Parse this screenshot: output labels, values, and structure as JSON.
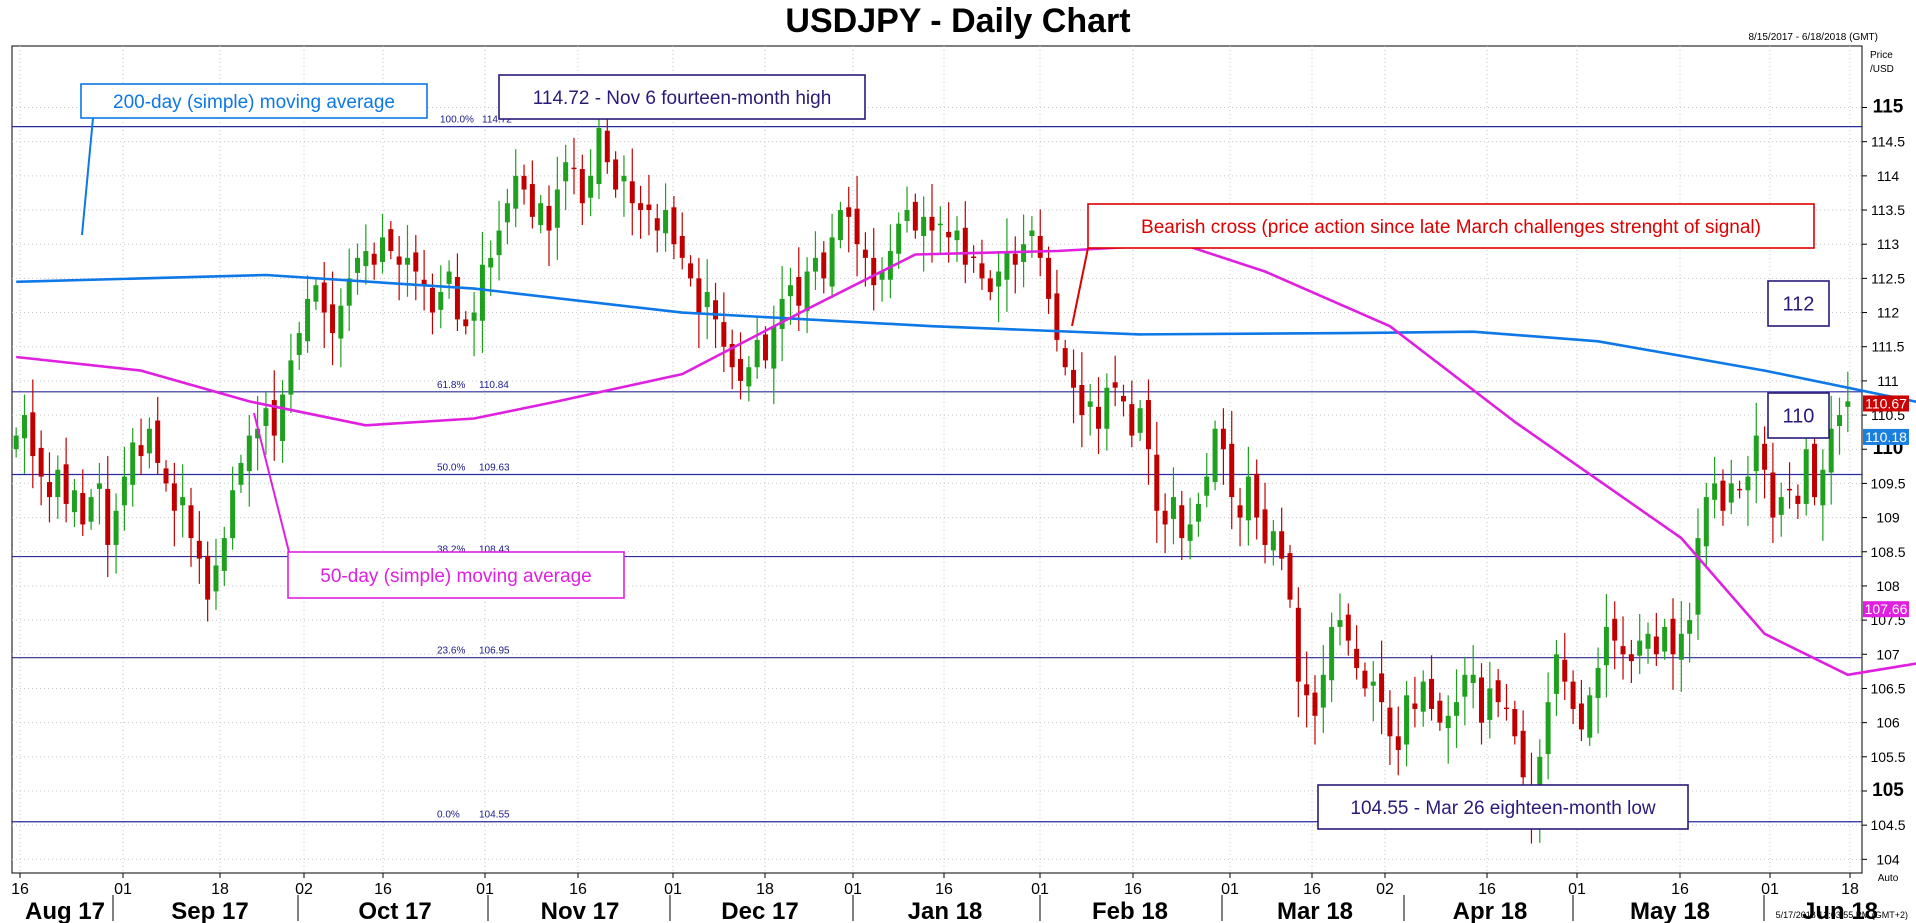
{
  "chart_data": {
    "type": "candlestick",
    "title": "USDJPY - Daily Chart",
    "date_range": "8/15/2017 - 6/18/2018 (GMT)",
    "y_axis_label": "Price /USD",
    "ylim": [
      103.8,
      115.9
    ],
    "y_ticks": [
      "104",
      "104.5",
      "105",
      "105.5",
      "106",
      "106.5",
      "107",
      "107.5",
      "108",
      "108.5",
      "109",
      "109.5",
      "110",
      "110.5",
      "111",
      "111.5",
      "112",
      "112.5",
      "113",
      "113.5",
      "114",
      "114.5",
      "115"
    ],
    "x_day_ticks": [
      "16",
      "01",
      "18",
      "02",
      "16",
      "01",
      "16",
      "01",
      "18",
      "01",
      "16",
      "01",
      "16",
      "01",
      "16",
      "02",
      "16",
      "01",
      "16",
      "01",
      "18"
    ],
    "x_month_labels": [
      "Aug 17",
      "Sep 17",
      "Oct 17",
      "Nov 17",
      "Dec 17",
      "Jan 18",
      "Feb 18",
      "Mar 18",
      "Apr 18",
      "May 18",
      "Jun 18"
    ],
    "fibonacci": [
      {
        "label": "100.0%",
        "value": 114.72,
        "value_text": "114.72"
      },
      {
        "label": "61.8%",
        "value": 110.84,
        "value_text": "110.84"
      },
      {
        "label": "50.0%",
        "value": 109.63,
        "value_text": "109.63"
      },
      {
        "label": "38.2%",
        "value": 108.43,
        "value_text": "108.43"
      },
      {
        "label": "23.6%",
        "value": 106.95,
        "value_text": "106.95"
      },
      {
        "label": "0.0%",
        "value": 104.55,
        "value_text": "104.55"
      }
    ],
    "closes": [
      110.2,
      110.5,
      109.9,
      109.6,
      109.3,
      109.7,
      109.2,
      109.4,
      108.9,
      109.3,
      109.5,
      108.6,
      109.1,
      109.6,
      110.1,
      109.9,
      110.3,
      109.8,
      109.5,
      109.1,
      109.3,
      108.7,
      108.4,
      107.8,
      108.3,
      108.7,
      109.4,
      109.8,
      110.2,
      110.3,
      110.6,
      110.2,
      110.8,
      111.3,
      111.7,
      112.2,
      112.4,
      112.0,
      111.7,
      112.1,
      112.5,
      112.8,
      112.9,
      112.7,
      113.1,
      112.9,
      112.7,
      112.8,
      112.6,
      112.4,
      112.0,
      112.3,
      112.6,
      111.9,
      111.8,
      112.0,
      112.7,
      112.8,
      113.2,
      113.6,
      114.0,
      113.8,
      113.4,
      113.6,
      113.2,
      113.8,
      114.2,
      114.1,
      113.6,
      114.0,
      114.7,
      114.2,
      113.8,
      114.0,
      113.6,
      113.5,
      113.5,
      113.2,
      113.5,
      113.0,
      112.8,
      112.5,
      112.0,
      112.3,
      111.9,
      111.5,
      111.2,
      111.0,
      111.2,
      111.6,
      111.3,
      111.8,
      112.2,
      112.4,
      112.1,
      112.6,
      112.8,
      112.5,
      113.1,
      113.5,
      113.4,
      113.0,
      112.8,
      112.4,
      112.6,
      112.9,
      113.3,
      113.5,
      113.2,
      113.4,
      113.2,
      113.3,
      113.1,
      113.2,
      112.7,
      112.8,
      112.5,
      112.3,
      112.6,
      112.9,
      112.7,
      113.0,
      113.2,
      112.8,
      112.2,
      111.6,
      111.2,
      110.9,
      110.5,
      110.7,
      110.3,
      110.9,
      110.9,
      110.7,
      110.2,
      110.6,
      110.0,
      109.1,
      108.9,
      109.3,
      108.7,
      108.9,
      109.2,
      109.6,
      110.3,
      110.0,
      109.3,
      109.0,
      109.6,
      109.0,
      108.6,
      108.8,
      108.4,
      107.8,
      106.6,
      106.4,
      106.1,
      106.7,
      107.4,
      107.5,
      107.2,
      106.8,
      106.5,
      106.6,
      106.3,
      105.8,
      105.6,
      106.4,
      106.2,
      106.6,
      106.2,
      106.0,
      106.1,
      106.3,
      106.7,
      106.7,
      106.0,
      106.5,
      106.3,
      106.2,
      105.8,
      105.2,
      104.7,
      105.5,
      106.3,
      107.0,
      106.6,
      106.2,
      105.9,
      106.4,
      106.8,
      107.4,
      107.2,
      107.0,
      106.9,
      107.2,
      107.3,
      107.0,
      107.4,
      107.0,
      107.3,
      107.5,
      108.7,
      109.3,
      109.5,
      109.1,
      109.5,
      109.4,
      109.6,
      110.2,
      109.7,
      109.0,
      109.3,
      109.4,
      109.2,
      110.0,
      109.3,
      109.7,
      110.3,
      110.5,
      110.7
    ],
    "series": [
      {
        "name": "200-day (simple) moving average",
        "color": "#0d78e6",
        "points": [
          [
            0,
            112.45
          ],
          [
            30,
            112.55
          ],
          [
            55,
            112.35
          ],
          [
            80,
            112.0
          ],
          [
            110,
            111.8
          ],
          [
            135,
            111.68
          ],
          [
            160,
            111.7
          ],
          [
            175,
            111.72
          ],
          [
            190,
            111.58
          ],
          [
            210,
            111.15
          ],
          [
            230,
            110.65
          ],
          [
            250,
            110.18
          ],
          [
            258,
            110.18
          ]
        ]
      },
      {
        "name": "50-day (simple) moving average",
        "color": "#e020e0",
        "points": [
          [
            0,
            111.35
          ],
          [
            15,
            111.15
          ],
          [
            28,
            110.7
          ],
          [
            42,
            110.35
          ],
          [
            55,
            110.45
          ],
          [
            65,
            110.7
          ],
          [
            80,
            111.1
          ],
          [
            95,
            112.05
          ],
          [
            108,
            112.85
          ],
          [
            125,
            112.9
          ],
          [
            140,
            113.0
          ],
          [
            150,
            112.6
          ],
          [
            165,
            111.8
          ],
          [
            180,
            110.4
          ],
          [
            200,
            108.7
          ],
          [
            210,
            107.3
          ],
          [
            220,
            106.7
          ],
          [
            235,
            107.0
          ],
          [
            250,
            107.4
          ],
          [
            258,
            107.66
          ]
        ]
      }
    ],
    "last_price_badges": [
      {
        "text": "110.67",
        "value": 110.67,
        "color": "#cc0000"
      },
      {
        "text": "110.18",
        "value": 110.18,
        "color": "#1b7fe0"
      },
      {
        "text": "107.66",
        "value": 107.66,
        "color": "#e020e0"
      }
    ],
    "annotations": [
      {
        "text": "200-day (simple) moving average",
        "color": "#0d78e6"
      },
      {
        "text": "114.72 - Nov 6 fourteen-month high",
        "color": "#2a1a7a"
      },
      {
        "text": "Bearish cross (price action since late March challenges strenght of signal)",
        "color": "#dd0000"
      },
      {
        "text": "50-day (simple) moving average",
        "color": "#e020e0"
      },
      {
        "text": "104.55 - Mar 26 eighteen-month low",
        "color": "#2a1a7a"
      },
      {
        "text": "112",
        "color": "#2a1a7a"
      },
      {
        "text": "110",
        "color": "#2a1a7a"
      }
    ],
    "up_color": "#1fa01f",
    "down_color": "#c00000"
  },
  "axis_footer": "Auto",
  "timestamp": "5/17/2018 12:03:55 PM (GMT+2)"
}
